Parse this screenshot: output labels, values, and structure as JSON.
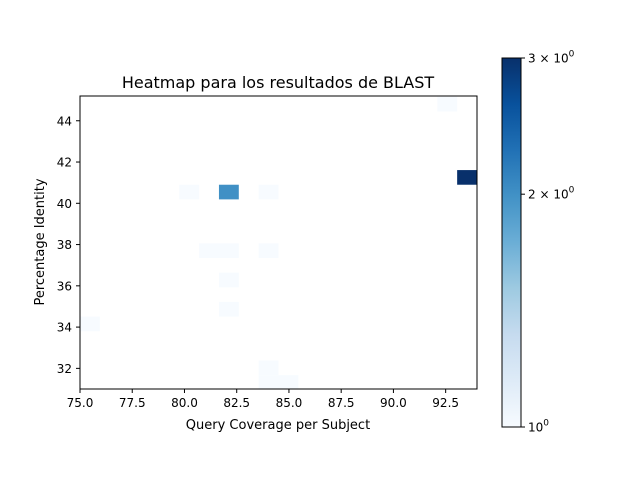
{
  "chart_data": {
    "type": "heatmap",
    "title": "Heatmap para los resultados de BLAST",
    "xlabel": "Query Coverage per Subject",
    "ylabel": "Percentage Identity",
    "xlim": [
      75.0,
      94.0
    ],
    "ylim": [
      31.0,
      45.2
    ],
    "xticks": [
      "75.0",
      "77.5",
      "80.0",
      "82.5",
      "85.0",
      "87.5",
      "90.0",
      "92.5"
    ],
    "yticks": [
      "32",
      "34",
      "36",
      "38",
      "40",
      "42",
      "44"
    ],
    "bin_width_x": 0.95,
    "bin_height_y": 0.71,
    "colorbar": {
      "scale": "log",
      "range": [
        1,
        3
      ],
      "tick_labels": [
        {
          "base": "3 × 10",
          "exp": "0"
        },
        {
          "base": "2 × 10",
          "exp": "0"
        },
        {
          "base": "10",
          "exp": "0"
        }
      ],
      "colormap": "Blues"
    },
    "cells": [
      {
        "x": 75.0,
        "y": 33.8,
        "count": 1
      },
      {
        "x": 79.75,
        "y": 40.19,
        "count": 1
      },
      {
        "x": 80.7,
        "y": 37.35,
        "count": 1
      },
      {
        "x": 81.65,
        "y": 40.19,
        "count": 2
      },
      {
        "x": 81.65,
        "y": 37.35,
        "count": 1
      },
      {
        "x": 81.65,
        "y": 35.93,
        "count": 1
      },
      {
        "x": 81.65,
        "y": 34.51,
        "count": 1
      },
      {
        "x": 83.55,
        "y": 40.19,
        "count": 1
      },
      {
        "x": 83.55,
        "y": 37.35,
        "count": 1
      },
      {
        "x": 83.55,
        "y": 31.67,
        "count": 1
      },
      {
        "x": 83.55,
        "y": 30.96,
        "count": 1
      },
      {
        "x": 84.5,
        "y": 30.96,
        "count": 1
      },
      {
        "x": 92.1,
        "y": 44.45,
        "count": 1
      },
      {
        "x": 93.05,
        "y": 40.9,
        "count": 3
      }
    ]
  }
}
